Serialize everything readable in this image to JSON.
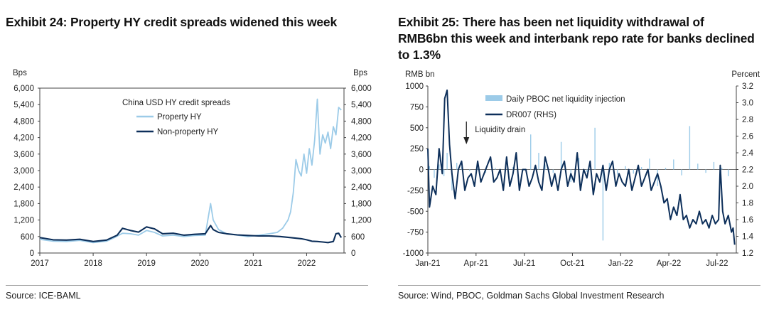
{
  "left": {
    "title": "Exhibit 24: Property HY credit spreads widened this week",
    "source": "Source: ICE-BAML"
  },
  "right": {
    "title": "Exhibit 25: There has been net liquidity withdrawal of RMB6bn this week and interbank repo rate for banks declined to 1.3%",
    "source": "Source: Wind, PBOC, Goldman Sachs Global Investment Research"
  },
  "colors": {
    "light_blue": "#9ccbe8",
    "dark_navy": "#0d2f5a",
    "axis": "#444444",
    "rule": "#9a9a9a"
  },
  "chart_data": [
    {
      "type": "line",
      "title": "China USD HY credit spreads",
      "ylabel_left": "Bps",
      "ylabel_right": "Bps",
      "ylim": [
        0,
        6000
      ],
      "y_ticks": [
        0,
        600,
        1200,
        1800,
        2400,
        3000,
        3600,
        4200,
        4800,
        5400,
        6000
      ],
      "y_tick_labels_left": [
        "0",
        "600",
        "1,200",
        "1,800",
        "2,400",
        "3,000",
        "3,600",
        "4,200",
        "4,800",
        "5,400",
        "6,000"
      ],
      "y_tick_labels_right": [
        "0",
        "600",
        "1,200",
        "1,800",
        "2,400",
        "3,000",
        "3,600",
        "4,200",
        "4,800",
        "5,400",
        "6,000"
      ],
      "xlim": [
        2017.0,
        2022.7
      ],
      "x_ticks": [
        2017,
        2018,
        2019,
        2020,
        2021,
        2022
      ],
      "x_tick_labels": [
        "2017",
        "2018",
        "2019",
        "2020",
        "2021",
        "2022"
      ],
      "legend_title": "China USD HY credit spreads",
      "series": [
        {
          "name": "Property HY",
          "color": "#9ccbe8",
          "x": [
            2017.0,
            2017.25,
            2017.5,
            2017.75,
            2018.0,
            2018.25,
            2018.4,
            2018.55,
            2018.7,
            2018.85,
            2019.0,
            2019.15,
            2019.3,
            2019.5,
            2019.7,
            2019.9,
            2020.1,
            2020.2,
            2020.25,
            2020.35,
            2020.5,
            2020.7,
            2020.9,
            2021.1,
            2021.3,
            2021.45,
            2021.55,
            2021.65,
            2021.7,
            2021.75,
            2021.8,
            2021.85,
            2021.9,
            2021.95,
            2022.0,
            2022.05,
            2022.1,
            2022.15,
            2022.2,
            2022.25,
            2022.3,
            2022.35,
            2022.4,
            2022.45,
            2022.5,
            2022.55,
            2022.6,
            2022.65
          ],
          "y": [
            500,
            430,
            420,
            460,
            380,
            430,
            560,
            720,
            700,
            650,
            820,
            750,
            620,
            650,
            600,
            640,
            650,
            1800,
            1200,
            850,
            700,
            650,
            600,
            650,
            700,
            750,
            900,
            1200,
            1500,
            2200,
            3400,
            3000,
            2800,
            3600,
            2900,
            3800,
            3200,
            4100,
            5600,
            3600,
            4300,
            4000,
            4400,
            3800,
            4600,
            4300,
            5300,
            5200
          ]
        },
        {
          "name": "Non-property HY",
          "color": "#0d2f5a",
          "x": [
            2017.0,
            2017.25,
            2017.5,
            2017.75,
            2018.0,
            2018.25,
            2018.45,
            2018.55,
            2018.7,
            2018.85,
            2019.0,
            2019.15,
            2019.3,
            2019.5,
            2019.7,
            2019.9,
            2020.1,
            2020.2,
            2020.25,
            2020.35,
            2020.5,
            2020.7,
            2020.9,
            2021.1,
            2021.3,
            2021.5,
            2021.7,
            2021.9,
            2022.0,
            2022.1,
            2022.2,
            2022.3,
            2022.4,
            2022.5,
            2022.55,
            2022.6,
            2022.65
          ],
          "y": [
            560,
            480,
            470,
            500,
            420,
            470,
            650,
            900,
            820,
            760,
            950,
            880,
            700,
            720,
            650,
            680,
            700,
            1000,
            850,
            750,
            700,
            660,
            640,
            620,
            620,
            600,
            560,
            520,
            480,
            430,
            420,
            400,
            380,
            420,
            700,
            720,
            560
          ]
        }
      ]
    },
    {
      "type": "bar+line",
      "title": "",
      "ylabel_left": "RMB bn",
      "ylabel_right": "Percent",
      "ylim_left": [
        -1000,
        1000
      ],
      "y_ticks_left": [
        -1000,
        -750,
        -500,
        -250,
        0,
        250,
        500,
        750,
        1000
      ],
      "y_tick_labels_left": [
        "-1000",
        "-750",
        "-500",
        "-250",
        "0",
        "250",
        "500",
        "750",
        "1000"
      ],
      "ylim_right": [
        1.2,
        3.2
      ],
      "y_ticks_right": [
        1.2,
        1.4,
        1.6,
        1.8,
        2.0,
        2.2,
        2.4,
        2.6,
        2.8,
        3.0,
        3.2
      ],
      "y_tick_labels_right": [
        "1.2",
        "1.4",
        "1.6",
        "1.8",
        "2.0",
        "2.2",
        "2.4",
        "2.6",
        "2.8",
        "3.0",
        "3.2"
      ],
      "xlim": [
        0,
        19.2
      ],
      "x_ticks": [
        0,
        3,
        6,
        9,
        12,
        15,
        18
      ],
      "x_tick_labels": [
        "Jan-21",
        "Apr-21",
        "Jul-21",
        "Oct-21",
        "Jan-22",
        "Apr-22",
        "Jul-22"
      ],
      "annotation": "Liquidity drain",
      "annotation_x": 2.4,
      "series": [
        {
          "name": "Daily PBOC net liquidity injection",
          "kind": "bar",
          "axis": "left",
          "color": "#9ccbe8",
          "x": [
            0.1,
            0.4,
            0.7,
            1.0,
            1.2,
            1.5,
            1.8,
            2.1,
            2.6,
            3.1,
            3.6,
            4.2,
            4.8,
            5.3,
            5.9,
            6.4,
            6.9,
            7.3,
            7.8,
            8.3,
            8.9,
            9.4,
            9.9,
            10.4,
            10.9,
            11.3,
            11.8,
            12.3,
            12.8,
            13.3,
            13.8,
            14.3,
            14.8,
            15.3,
            15.8,
            16.3,
            16.8,
            17.3,
            17.8,
            18.3,
            18.7
          ],
          "y": [
            40,
            -100,
            60,
            -80,
            200,
            -250,
            80,
            30,
            -20,
            10,
            -40,
            20,
            -10,
            30,
            -30,
            420,
            200,
            60,
            -40,
            330,
            -150,
            140,
            -30,
            500,
            -850,
            80,
            -60,
            40,
            -50,
            30,
            130,
            -200,
            20,
            120,
            -70,
            520,
            70,
            -40,
            90,
            20,
            -80
          ]
        },
        {
          "name": "DR007 (RHS)",
          "kind": "line",
          "axis": "right",
          "color": "#0d2f5a",
          "x": [
            0.0,
            0.1,
            0.3,
            0.5,
            0.7,
            0.9,
            1.05,
            1.2,
            1.35,
            1.5,
            1.7,
            1.9,
            2.1,
            2.3,
            2.5,
            2.7,
            2.9,
            3.1,
            3.3,
            3.5,
            3.7,
            3.9,
            4.1,
            4.3,
            4.5,
            4.7,
            4.9,
            5.1,
            5.3,
            5.5,
            5.7,
            5.9,
            6.1,
            6.3,
            6.5,
            6.7,
            6.9,
            7.1,
            7.3,
            7.5,
            7.7,
            7.9,
            8.1,
            8.3,
            8.5,
            8.7,
            8.9,
            9.1,
            9.3,
            9.5,
            9.7,
            9.9,
            10.1,
            10.3,
            10.5,
            10.7,
            10.9,
            11.1,
            11.3,
            11.5,
            11.7,
            11.9,
            12.1,
            12.3,
            12.5,
            12.7,
            12.9,
            13.1,
            13.3,
            13.5,
            13.7,
            13.9,
            14.1,
            14.3,
            14.5,
            14.7,
            14.9,
            15.1,
            15.3,
            15.5,
            15.7,
            15.9,
            16.1,
            16.3,
            16.5,
            16.7,
            16.9,
            17.1,
            17.3,
            17.5,
            17.7,
            17.9,
            18.1,
            18.2,
            18.35,
            18.5,
            18.7,
            18.9,
            19.0,
            19.1
          ],
          "y": [
            2.45,
            1.75,
            2.0,
            1.9,
            2.45,
            2.15,
            3.05,
            3.15,
            2.5,
            2.15,
            1.85,
            2.2,
            2.3,
            1.95,
            2.1,
            2.15,
            2.0,
            2.3,
            2.05,
            2.15,
            2.25,
            2.35,
            2.05,
            2.1,
            2.2,
            1.95,
            2.35,
            2.0,
            2.15,
            2.4,
            1.95,
            2.2,
            2.2,
            2.0,
            2.1,
            2.25,
            2.05,
            1.95,
            2.35,
            2.2,
            2.0,
            2.15,
            1.95,
            2.2,
            2.3,
            2.0,
            2.15,
            2.05,
            2.4,
            1.95,
            2.2,
            2.1,
            2.3,
            1.9,
            2.15,
            2.05,
            2.25,
            1.95,
            2.2,
            2.3,
            2.0,
            2.15,
            2.05,
            2.0,
            2.2,
            1.95,
            2.1,
            2.25,
            2.0,
            2.1,
            2.2,
            1.95,
            2.05,
            2.15,
            2.0,
            1.8,
            1.85,
            1.6,
            1.75,
            1.65,
            1.9,
            1.6,
            1.65,
            1.5,
            1.6,
            1.55,
            1.7,
            1.55,
            1.6,
            1.5,
            1.65,
            1.55,
            1.6,
            2.25,
            1.7,
            1.55,
            1.65,
            1.45,
            1.5,
            1.3
          ]
        }
      ]
    }
  ]
}
